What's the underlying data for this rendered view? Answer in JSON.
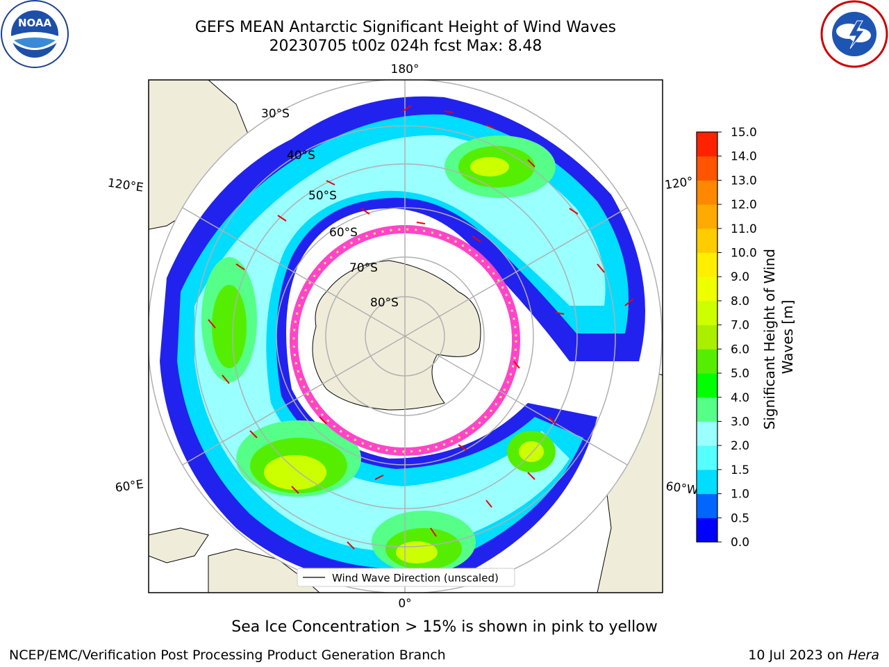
{
  "title": {
    "line1": "GEFS MEAN Antarctic Significant Height of Wind Waves",
    "line2": "20230705 t00z 024h fcst   Max: 8.48"
  },
  "map": {
    "meridian_labels": {
      "top": "180°",
      "bottom": "0°",
      "upper_left": "120°E",
      "upper_right": "120°",
      "lower_left": "60°E",
      "lower_right": "60°W"
    },
    "latitude_labels": [
      "30°S",
      "40°S",
      "50°S",
      "60°S",
      "70°S",
      "80°S"
    ],
    "legend": "Wind Wave Direction (unscaled)"
  },
  "colorbar": {
    "label": "Significant Height of Wind Waves [m]",
    "ticks": [
      "0.0",
      "0.5",
      "1.0",
      "1.5",
      "2.0",
      "3.0",
      "4.0",
      "5.0",
      "6.0",
      "7.0",
      "8.0",
      "9.0",
      "10.0",
      "11.0",
      "12.0",
      "13.0",
      "14.0",
      "15.0"
    ],
    "colors": [
      "#0000ff",
      "#0066ff",
      "#00ddff",
      "#55ffff",
      "#99ffff",
      "#55ff88",
      "#00ff00",
      "#55ee00",
      "#aaee00",
      "#ccff00",
      "#eeff00",
      "#ffee00",
      "#ffcc00",
      "#ffaa00",
      "#ff8800",
      "#ff5500",
      "#ff2200",
      "#ff0000"
    ]
  },
  "footer": {
    "ice_note": "Sea Ice Concentration > 15% is shown in pink to yellow",
    "credit": "NCEP/EMC/Verification Post Processing Product Generation Branch",
    "date": "10 Jul 2023 on ",
    "host": "Hera"
  },
  "logos": {
    "left": "NOAA",
    "right": "NATIONAL WEATHER SERVICE"
  }
}
